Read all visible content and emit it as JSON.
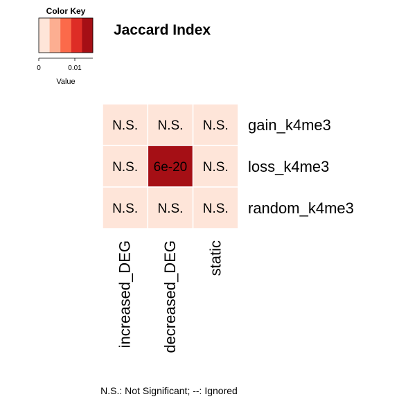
{
  "chart_data": {
    "type": "heatmap",
    "title": "Jaccard Index",
    "columns": [
      "increased_DEG",
      "decreased_DEG",
      "static"
    ],
    "rows": [
      "gain_k4me3",
      "loss_k4me3",
      "random_k4me3"
    ],
    "values": [
      [
        0.0015,
        0.0015,
        0.0015
      ],
      [
        0.0015,
        0.0135,
        0.0015
      ],
      [
        0.0015,
        0.0015,
        0.0015
      ]
    ],
    "cell_labels": [
      [
        "N.S.",
        "N.S.",
        "N.S."
      ],
      [
        "N.S.",
        "6e-20",
        "N.S."
      ],
      [
        "N.S.",
        "N.S.",
        "N.S."
      ]
    ],
    "color_key": {
      "title": "Color Key",
      "xlabel": "Value",
      "ticks": [
        {
          "value": 0,
          "label": "0"
        },
        {
          "value": 0.01,
          "label": "0.01"
        }
      ],
      "range": [
        0,
        0.015
      ],
      "colors": [
        "#fee5d9",
        "#fcae91",
        "#fb6a4a",
        "#de2d26",
        "#a50f15"
      ]
    },
    "footnote": "N.S.: Not Significant; --: Ignored"
  }
}
